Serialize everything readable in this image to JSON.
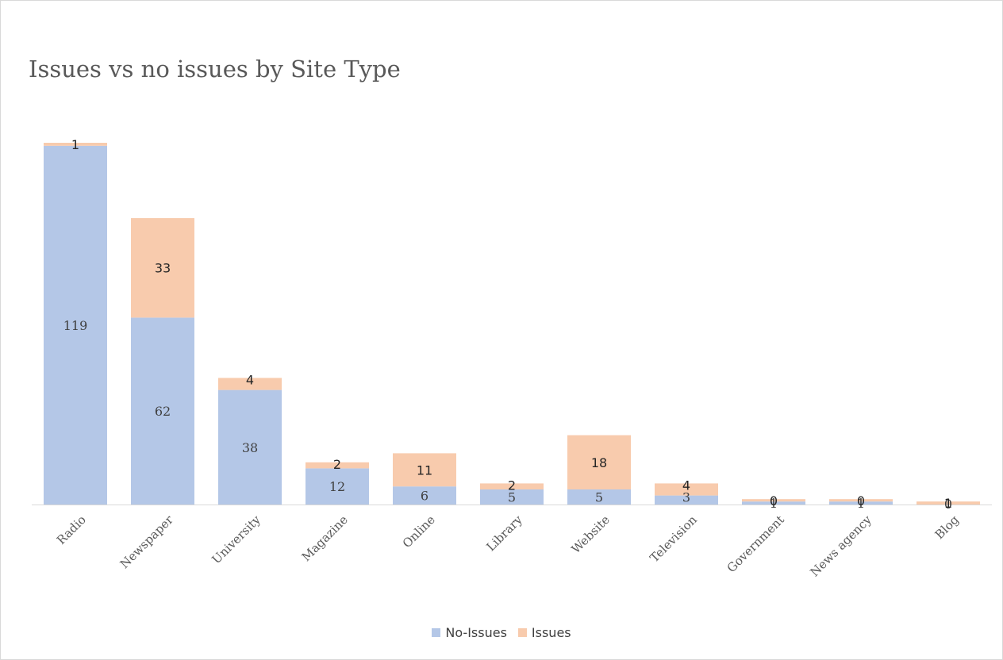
{
  "chart_data": {
    "type": "bar",
    "stacked": true,
    "title": "Issues vs no issues by Site Type",
    "categories": [
      "Radio",
      "Newspaper",
      "University",
      "Magazine",
      "Online",
      "Library",
      "Website",
      "Television",
      "Government",
      "News agency",
      "Blog"
    ],
    "series": [
      {
        "name": "No-Issues",
        "color": "#b4c7e7",
        "values": [
          119,
          62,
          38,
          12,
          6,
          5,
          5,
          3,
          1,
          1,
          0
        ]
      },
      {
        "name": "Issues",
        "color": "#f8cbad",
        "values": [
          1,
          33,
          4,
          2,
          11,
          2,
          18,
          4,
          0,
          0,
          1
        ]
      }
    ],
    "data_labels": {
      "No-Issues": [
        "119",
        "62",
        "38",
        "12",
        "6",
        "5",
        "5",
        "3",
        "1",
        "1",
        "0"
      ],
      "Issues": [
        "1",
        "33",
        "4",
        "2",
        "11",
        "2",
        "18",
        "4",
        "0",
        "0",
        "1"
      ]
    },
    "xlabel": "",
    "ylabel": "",
    "ylim": [
      0,
      120
    ],
    "grid": false,
    "legend_position": "bottom"
  }
}
